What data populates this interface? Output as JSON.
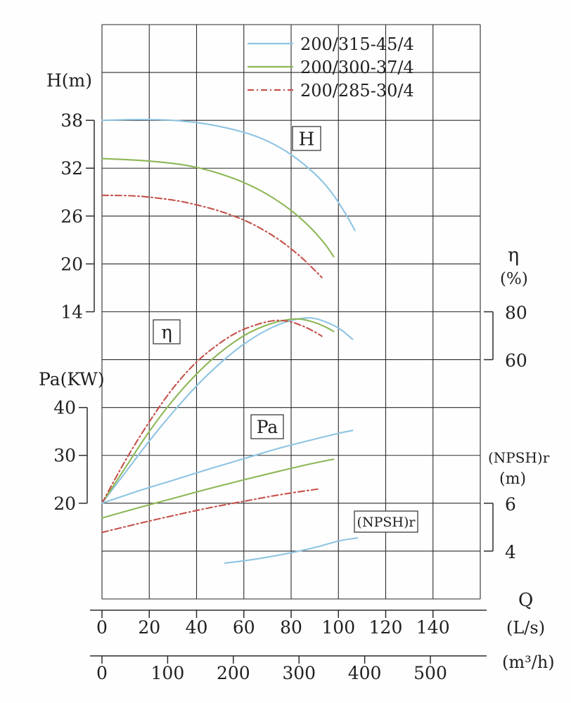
{
  "chart_data": {
    "type": "line",
    "title": "",
    "legend_position": "top",
    "grid": true,
    "legend": [
      {
        "label": "200/315-45/4",
        "color": "#8ec4e2",
        "dash": ""
      },
      {
        "label": "200/300-37/4",
        "color": "#8db757",
        "dash": ""
      },
      {
        "label": "200/285-30/4",
        "color": "#c5524c",
        "dash": "9 4 2 4"
      }
    ],
    "curve_labels": {
      "h": "H",
      "eta": "η",
      "pa": "Pa",
      "npsh": "(NPSH)r"
    },
    "axes": {
      "q_ls": {
        "label": "Q",
        "unit": "(L/s)",
        "ticks": [
          0,
          20,
          40,
          60,
          80,
          100,
          120,
          140
        ],
        "range": [
          0,
          160
        ]
      },
      "q_m3h": {
        "unit": "(m³/h)",
        "ticks": [
          0,
          100,
          200,
          300,
          400,
          500
        ],
        "range": [
          0,
          576
        ]
      },
      "h": {
        "label": "H(m)",
        "ticks": [
          38,
          32,
          26,
          20,
          14
        ],
        "range": [
          14,
          38
        ]
      },
      "pa": {
        "label": "Pa(KW)",
        "ticks": [
          40,
          30,
          20
        ],
        "range": [
          20,
          40
        ]
      },
      "eta": {
        "label": "η",
        "unit": "(%)",
        "ticks": [
          80,
          60
        ],
        "range": [
          60,
          80
        ]
      },
      "npsh": {
        "label": "(NPSH)r",
        "unit": "(m)",
        "ticks": [
          6,
          4
        ],
        "range": [
          4,
          6
        ]
      }
    },
    "series": {
      "h": [
        {
          "legend": 0,
          "points": [
            [
              0,
              38
            ],
            [
              15,
              38.1
            ],
            [
              30,
              38
            ],
            [
              45,
              37.5
            ],
            [
              60,
              36.5
            ],
            [
              70,
              35.4
            ],
            [
              80,
              33.7
            ],
            [
              90,
              31.3
            ],
            [
              97,
              29
            ],
            [
              103,
              26.3
            ],
            [
              107,
              24.2
            ]
          ]
        },
        {
          "legend": 1,
          "points": [
            [
              0,
              33.2
            ],
            [
              15,
              33
            ],
            [
              30,
              32.6
            ],
            [
              40,
              32.1
            ],
            [
              50,
              31.3
            ],
            [
              60,
              30.2
            ],
            [
              70,
              28.7
            ],
            [
              80,
              26.7
            ],
            [
              88,
              24.6
            ],
            [
              94,
              22.6
            ],
            [
              98,
              20.9
            ]
          ]
        },
        {
          "legend": 2,
          "points": [
            [
              0,
              28.6
            ],
            [
              15,
              28.5
            ],
            [
              30,
              28
            ],
            [
              40,
              27.4
            ],
            [
              50,
              26.6
            ],
            [
              60,
              25.5
            ],
            [
              68,
              24.3
            ],
            [
              76,
              22.8
            ],
            [
              84,
              20.9
            ],
            [
              90,
              19.2
            ],
            [
              93,
              18.3
            ]
          ]
        }
      ],
      "eta": [
        {
          "legend": 0,
          "points": [
            [
              0,
              0
            ],
            [
              10,
              13
            ],
            [
              20,
              26
            ],
            [
              30,
              38
            ],
            [
              40,
              49
            ],
            [
              50,
              58.5
            ],
            [
              60,
              66.5
            ],
            [
              70,
              72.5
            ],
            [
              78,
              75.8
            ],
            [
              85,
              77.3
            ],
            [
              90,
              77.2
            ],
            [
              96,
              75.2
            ],
            [
              101,
              72.6
            ],
            [
              106,
              68.5
            ]
          ]
        },
        {
          "legend": 1,
          "points": [
            [
              0,
              0
            ],
            [
              10,
              15
            ],
            [
              20,
              30
            ],
            [
              30,
              43
            ],
            [
              40,
              54
            ],
            [
              50,
              63
            ],
            [
              60,
              70
            ],
            [
              68,
              73.8
            ],
            [
              76,
              76.2
            ],
            [
              83,
              77
            ],
            [
              89,
              75.8
            ],
            [
              94,
              73.9
            ],
            [
              98,
              71.8
            ]
          ]
        },
        {
          "legend": 2,
          "points": [
            [
              0,
              0
            ],
            [
              10,
              18
            ],
            [
              20,
              34
            ],
            [
              30,
              48
            ],
            [
              40,
              59
            ],
            [
              50,
              67
            ],
            [
              58,
              71.8
            ],
            [
              66,
              74.8
            ],
            [
              73,
              76.3
            ],
            [
              79,
              76
            ],
            [
              85,
              74
            ],
            [
              90,
              71.6
            ],
            [
              93,
              69.8
            ]
          ]
        }
      ],
      "pa": [
        {
          "legend": 0,
          "points": [
            [
              0,
              20
            ],
            [
              15,
              22.5
            ],
            [
              30,
              24.8
            ],
            [
              45,
              27.1
            ],
            [
              60,
              29.3
            ],
            [
              75,
              31.5
            ],
            [
              90,
              33.4
            ],
            [
              100,
              34.6
            ],
            [
              106,
              35.2
            ]
          ]
        },
        {
          "legend": 1,
          "points": [
            [
              0,
              16.9
            ],
            [
              15,
              19
            ],
            [
              30,
              21
            ],
            [
              45,
              23
            ],
            [
              60,
              24.9
            ],
            [
              75,
              26.7
            ],
            [
              88,
              28.2
            ],
            [
              98,
              29.2
            ]
          ]
        },
        {
          "legend": 2,
          "points": [
            [
              0,
              13.9
            ],
            [
              15,
              15.7
            ],
            [
              30,
              17.4
            ],
            [
              45,
              19
            ],
            [
              60,
              20.4
            ],
            [
              72,
              21.5
            ],
            [
              82,
              22.3
            ],
            [
              92,
              23
            ]
          ]
        }
      ],
      "npsh": [
        {
          "legend": 0,
          "points": [
            [
              52,
              3.5
            ],
            [
              62,
              3.62
            ],
            [
              72,
              3.78
            ],
            [
              82,
              3.97
            ],
            [
              92,
              4.2
            ],
            [
              100,
              4.42
            ],
            [
              108,
              4.55
            ]
          ]
        }
      ]
    }
  }
}
